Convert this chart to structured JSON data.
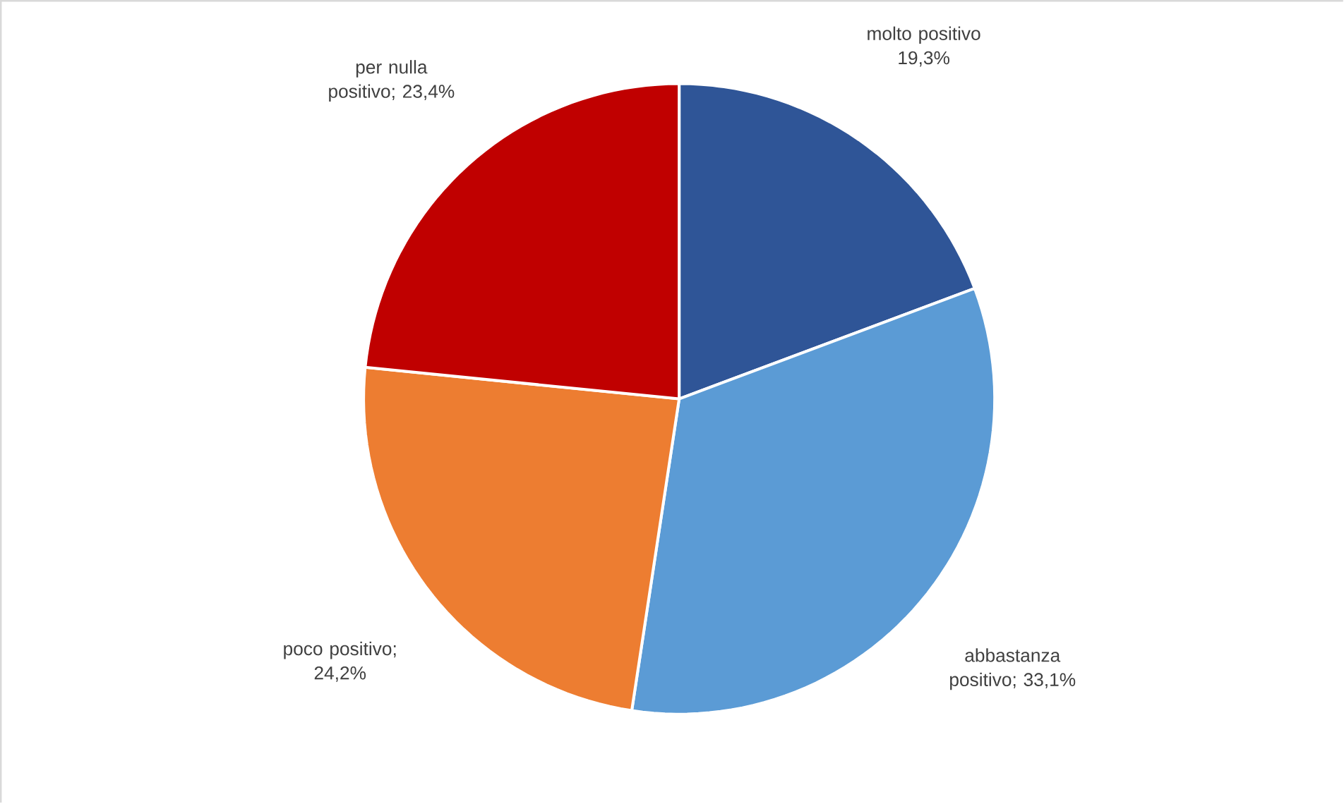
{
  "chart_data": {
    "type": "pie",
    "categories": [
      "molto positivo",
      "abbastanza positivo",
      "poco positivo",
      "per nulla positivo"
    ],
    "values": [
      19.3,
      33.1,
      24.2,
      23.4
    ],
    "value_labels": [
      "19,3%",
      "; 33,1%",
      "; 24,2%",
      "; 23,4%"
    ],
    "colors": [
      "#2f5597",
      "#5b9bd5",
      "#ed7d31",
      "#c00000"
    ],
    "legend": false
  }
}
